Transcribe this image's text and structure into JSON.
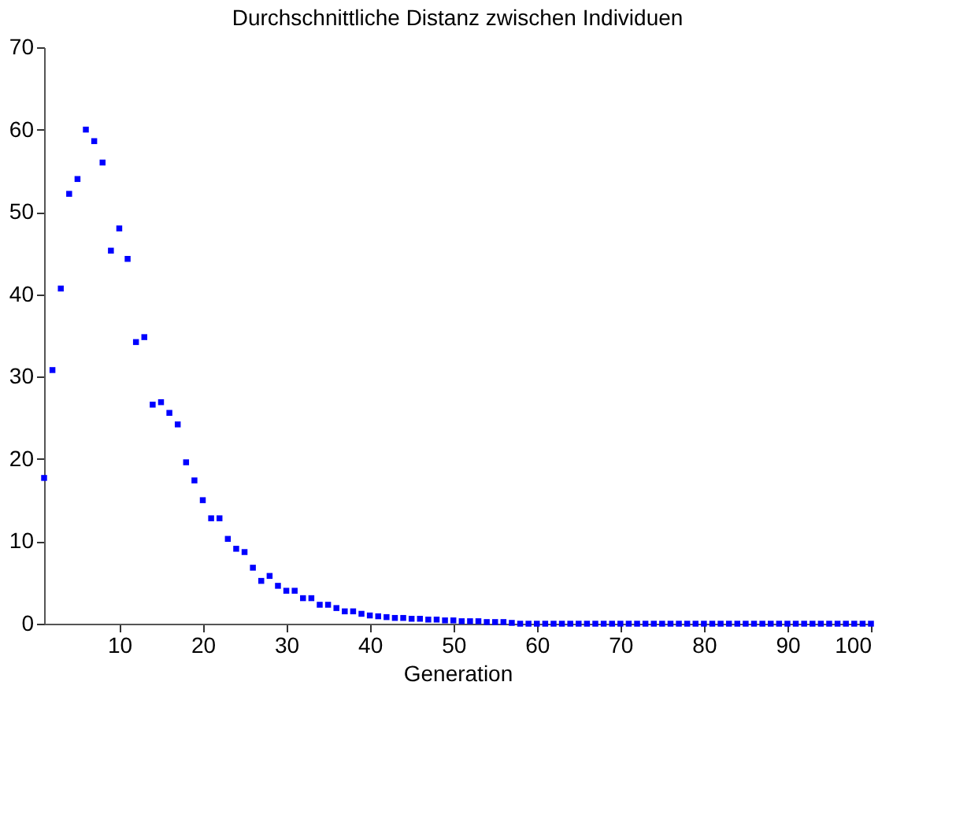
{
  "chart_data": {
    "type": "scatter",
    "title": "Durchschnittliche Distanz zwischen Individuen",
    "xlabel": "Generation",
    "x": [
      1,
      2,
      3,
      4,
      5,
      6,
      7,
      8,
      9,
      10,
      11,
      12,
      13,
      14,
      15,
      16,
      17,
      18,
      19,
      20,
      21,
      22,
      23,
      24,
      25,
      26,
      27,
      28,
      29,
      30,
      31,
      32,
      33,
      34,
      35,
      36,
      37,
      38,
      39,
      40,
      41,
      42,
      43,
      44,
      45,
      46,
      47,
      48,
      49,
      50,
      51,
      52,
      53,
      54,
      55,
      56,
      57,
      58,
      59,
      60,
      61,
      62,
      63,
      64,
      65,
      66,
      67,
      68,
      69,
      70,
      71,
      72,
      73,
      74,
      75,
      76,
      77,
      78,
      79,
      80,
      81,
      82,
      83,
      84,
      85,
      86,
      87,
      88,
      89,
      90,
      91,
      92,
      93,
      94,
      95,
      96,
      97,
      98,
      99,
      100
    ],
    "series": [
      {
        "color": "#0000ff",
        "values": [
          17.7,
          30.8,
          40.7,
          52.2,
          54,
          60,
          58.6,
          56,
          45.3,
          48,
          44.3,
          34.2,
          34.8,
          26.6,
          26.9,
          25.6,
          24.2,
          19.6,
          17.4,
          15,
          12.8,
          12.8,
          10.3,
          9.1,
          8.7,
          6.8,
          5.2,
          5.8,
          4.6,
          4,
          4,
          3.1,
          3.1,
          2.3,
          2.3,
          1.9,
          1.5,
          1.5,
          1.2,
          1,
          0.9,
          0.8,
          0.7,
          0.7,
          0.6,
          0.6,
          0.5,
          0.5,
          0.4,
          0.4,
          0.3,
          0.3,
          0.3,
          0.2,
          0.2,
          0.2,
          0.1,
          0,
          0,
          0,
          0,
          0,
          0,
          0,
          0,
          0,
          0,
          0,
          0,
          0,
          0,
          0,
          0,
          0,
          0,
          0,
          0,
          0,
          0,
          0,
          0,
          0,
          0,
          0,
          0,
          0,
          0,
          0,
          0,
          0,
          0,
          0,
          0,
          0,
          0,
          0,
          0,
          0,
          0,
          0
        ]
      }
    ],
    "xlim": [
      1,
      100
    ],
    "xticks": [
      10,
      20,
      30,
      40,
      50,
      60,
      70,
      80,
      90,
      100
    ],
    "ylim": [
      0,
      70
    ],
    "yticks": [
      0,
      10,
      20,
      30,
      40,
      50,
      60,
      70
    ],
    "marker": "square",
    "grid": false
  }
}
